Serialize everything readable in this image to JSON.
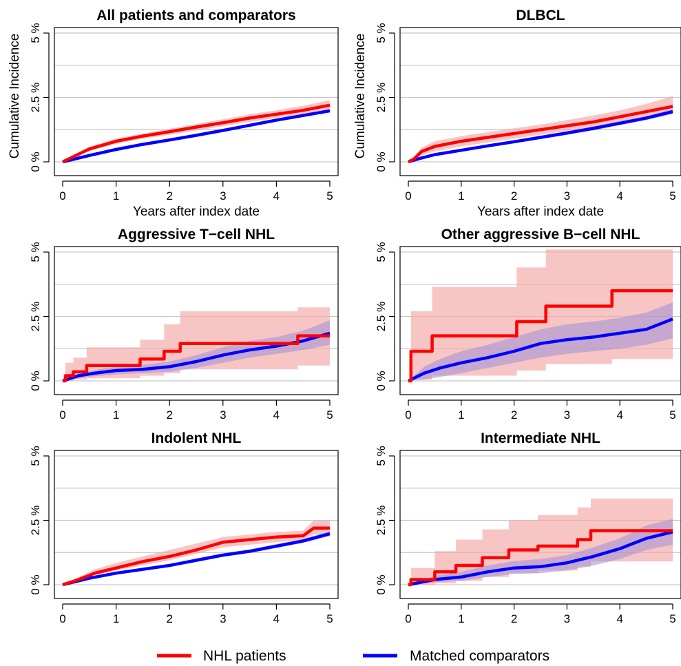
{
  "colors": {
    "nhl": "#ff0000",
    "nhl_band": "#f4a6a6",
    "comparator": "#0000ff",
    "comparator_band": "#9d8fd6",
    "grid": "#c8c8c8"
  },
  "legend": [
    {
      "label": "NHL patients",
      "color": "#ff0000"
    },
    {
      "label": "Matched comparators",
      "color": "#0000ff"
    }
  ],
  "chart_data": [
    {
      "type": "line",
      "title": "All patients and comparators",
      "xlabel": "Years after index date",
      "ylabel": "Cumulative Incidence",
      "xlim": [
        0,
        5
      ],
      "ylim": [
        0,
        5
      ],
      "xticks": [
        "0",
        "1",
        "2",
        "3",
        "4",
        "5"
      ],
      "yticks": [
        "0 %",
        "2.5 %",
        "5 %"
      ],
      "grid": true,
      "series": [
        {
          "name": "NHL patients",
          "step": false,
          "x": [
            0,
            0.5,
            1,
            1.5,
            2,
            2.5,
            3,
            3.5,
            4,
            4.5,
            5
          ],
          "y": [
            0,
            0.5,
            0.8,
            1.0,
            1.17,
            1.35,
            1.52,
            1.7,
            1.85,
            2.0,
            2.2
          ],
          "lower": [
            0,
            0.42,
            0.7,
            0.9,
            1.05,
            1.22,
            1.38,
            1.55,
            1.7,
            1.85,
            2.05
          ],
          "upper": [
            0,
            0.58,
            0.9,
            1.1,
            1.28,
            1.47,
            1.65,
            1.85,
            2.0,
            2.18,
            2.4
          ]
        },
        {
          "name": "Matched comparators",
          "step": false,
          "x": [
            0,
            0.5,
            1,
            1.5,
            2,
            2.5,
            3,
            3.5,
            4,
            4.5,
            5
          ],
          "y": [
            0,
            0.25,
            0.48,
            0.68,
            0.85,
            1.03,
            1.22,
            1.42,
            1.62,
            1.8,
            1.98
          ],
          "lower": [
            0,
            0.22,
            0.44,
            0.64,
            0.8,
            0.98,
            1.17,
            1.37,
            1.56,
            1.74,
            1.92
          ],
          "upper": [
            0,
            0.28,
            0.52,
            0.72,
            0.9,
            1.08,
            1.27,
            1.47,
            1.68,
            1.86,
            2.04
          ]
        }
      ]
    },
    {
      "type": "line",
      "title": "DLBCL",
      "xlabel": "Years after index date",
      "ylabel": "Cumulative Incidence",
      "xlim": [
        0,
        5
      ],
      "ylim": [
        0,
        5
      ],
      "xticks": [
        "0",
        "1",
        "2",
        "3",
        "4",
        "5"
      ],
      "yticks": [
        "0 %",
        "2.5 %",
        "5 %"
      ],
      "grid": true,
      "series": [
        {
          "name": "NHL patients",
          "step": false,
          "x": [
            0,
            0.1,
            0.25,
            0.5,
            1,
            1.5,
            2,
            2.5,
            3,
            3.5,
            4,
            4.5,
            5
          ],
          "y": [
            0,
            0.1,
            0.4,
            0.6,
            0.8,
            0.95,
            1.1,
            1.25,
            1.4,
            1.55,
            1.75,
            1.95,
            2.15
          ],
          "lower": [
            0,
            0.05,
            0.25,
            0.4,
            0.6,
            0.75,
            0.9,
            1.05,
            1.2,
            1.35,
            1.55,
            1.75,
            1.9
          ],
          "upper": [
            0,
            0.15,
            0.55,
            0.8,
            1.0,
            1.15,
            1.3,
            1.45,
            1.62,
            1.8,
            2.0,
            2.25,
            2.55
          ]
        },
        {
          "name": "Matched comparators",
          "step": false,
          "x": [
            0,
            0.25,
            0.5,
            1,
            1.5,
            2,
            2.5,
            3,
            3.5,
            4,
            4.5,
            5
          ],
          "y": [
            0,
            0.15,
            0.28,
            0.45,
            0.62,
            0.78,
            0.95,
            1.12,
            1.3,
            1.5,
            1.7,
            1.95
          ],
          "lower": [
            0,
            0.12,
            0.24,
            0.4,
            0.56,
            0.72,
            0.88,
            1.05,
            1.22,
            1.42,
            1.62,
            1.85
          ],
          "upper": [
            0,
            0.18,
            0.32,
            0.5,
            0.68,
            0.84,
            1.02,
            1.19,
            1.38,
            1.58,
            1.78,
            2.05
          ]
        }
      ]
    },
    {
      "type": "line",
      "title": "Aggressive T−cell NHL",
      "xlabel": "",
      "ylabel": "",
      "xlim": [
        0,
        5
      ],
      "ylim": [
        0,
        5
      ],
      "xticks": [
        "0",
        "1",
        "2",
        "3",
        "4",
        "5"
      ],
      "yticks": [
        "0 %",
        "2.5 %",
        "5 %"
      ],
      "grid": true,
      "series": [
        {
          "name": "NHL patients",
          "step": true,
          "x": [
            0,
            0.05,
            0.2,
            0.45,
            1.45,
            1.9,
            2.2,
            4.4,
            5
          ],
          "y": [
            0,
            0.2,
            0.35,
            0.6,
            0.85,
            1.15,
            1.45,
            1.75,
            1.75
          ],
          "lower": [
            0,
            0,
            0.05,
            0.1,
            0.2,
            0.3,
            0.45,
            0.6,
            0.6
          ],
          "upper": [
            0,
            0.7,
            0.9,
            1.3,
            1.6,
            2.2,
            2.7,
            2.85,
            2.85
          ]
        },
        {
          "name": "Matched comparators",
          "step": false,
          "x": [
            0,
            0.3,
            0.6,
            1,
            1.5,
            2,
            2.5,
            3,
            3.5,
            4,
            4.5,
            5
          ],
          "y": [
            0,
            0.2,
            0.3,
            0.4,
            0.45,
            0.55,
            0.75,
            1.0,
            1.2,
            1.35,
            1.55,
            1.85
          ],
          "lower": [
            0,
            0.1,
            0.18,
            0.25,
            0.3,
            0.35,
            0.5,
            0.7,
            0.9,
            1.05,
            1.2,
            1.4
          ],
          "upper": [
            0,
            0.3,
            0.42,
            0.55,
            0.62,
            0.75,
            1.0,
            1.3,
            1.55,
            1.7,
            1.95,
            2.35
          ]
        }
      ]
    },
    {
      "type": "line",
      "title": "Other aggressive B−cell NHL",
      "xlabel": "",
      "ylabel": "",
      "xlim": [
        0,
        5
      ],
      "ylim": [
        0,
        5
      ],
      "xticks": [
        "0",
        "1",
        "2",
        "3",
        "4",
        "5"
      ],
      "yticks": [
        "0 %",
        "2.5 %",
        "5 %"
      ],
      "grid": true,
      "series": [
        {
          "name": "NHL patients",
          "step": true,
          "x": [
            0,
            0.05,
            0.45,
            2.05,
            2.6,
            3.85,
            5
          ],
          "y": [
            0,
            1.15,
            1.75,
            2.3,
            2.9,
            3.5,
            3.5
          ],
          "lower": [
            0,
            0.05,
            0.2,
            0.4,
            0.65,
            0.85,
            0.85
          ],
          "upper": [
            0,
            2.7,
            3.65,
            4.4,
            5.1,
            5.1,
            5.1
          ]
        },
        {
          "name": "Matched comparators",
          "step": false,
          "x": [
            0,
            0.3,
            0.6,
            1,
            1.5,
            2,
            2.5,
            3,
            3.5,
            4,
            4.5,
            5
          ],
          "y": [
            0,
            0.3,
            0.5,
            0.7,
            0.9,
            1.15,
            1.45,
            1.6,
            1.7,
            1.85,
            2.0,
            2.4
          ],
          "lower": [
            0,
            0.05,
            0.15,
            0.3,
            0.5,
            0.7,
            0.9,
            1.05,
            1.15,
            1.25,
            1.4,
            1.65
          ],
          "upper": [
            0,
            0.55,
            0.85,
            1.15,
            1.4,
            1.7,
            2.0,
            2.2,
            2.3,
            2.45,
            2.65,
            3.05
          ]
        }
      ]
    },
    {
      "type": "line",
      "title": "Indolent NHL",
      "xlabel": "",
      "ylabel": "",
      "xlim": [
        0,
        5
      ],
      "ylim": [
        0,
        5
      ],
      "xticks": [
        "0",
        "1",
        "2",
        "3",
        "4",
        "5"
      ],
      "yticks": [
        "0 %",
        "2.5 %",
        "5 %"
      ],
      "grid": true,
      "series": [
        {
          "name": "NHL patients",
          "step": false,
          "x": [
            0,
            0.3,
            0.6,
            1,
            1.5,
            2,
            2.5,
            3,
            3.5,
            4,
            4.5,
            4.7,
            5
          ],
          "y": [
            0,
            0.2,
            0.45,
            0.65,
            0.9,
            1.1,
            1.35,
            1.65,
            1.75,
            1.85,
            1.9,
            2.2,
            2.2
          ],
          "lower": [
            0,
            0.15,
            0.35,
            0.55,
            0.75,
            0.95,
            1.2,
            1.45,
            1.55,
            1.65,
            1.75,
            1.95,
            1.95
          ],
          "upper": [
            0,
            0.3,
            0.6,
            0.85,
            1.1,
            1.35,
            1.6,
            1.85,
            1.95,
            2.05,
            2.1,
            2.5,
            2.5
          ]
        },
        {
          "name": "Matched comparators",
          "step": false,
          "x": [
            0,
            0.5,
            1,
            1.5,
            2,
            2.5,
            3,
            3.5,
            4,
            4.5,
            5
          ],
          "y": [
            0,
            0.25,
            0.45,
            0.6,
            0.75,
            0.95,
            1.15,
            1.3,
            1.5,
            1.7,
            1.98
          ],
          "lower": [
            0,
            0.22,
            0.4,
            0.55,
            0.7,
            0.88,
            1.08,
            1.23,
            1.42,
            1.62,
            1.88
          ],
          "upper": [
            0,
            0.28,
            0.5,
            0.65,
            0.8,
            1.02,
            1.22,
            1.37,
            1.58,
            1.78,
            2.08
          ]
        }
      ]
    },
    {
      "type": "line",
      "title": "Intermediate NHL",
      "xlabel": "",
      "ylabel": "",
      "xlim": [
        0,
        5
      ],
      "ylim": [
        0,
        5
      ],
      "xticks": [
        "0",
        "1",
        "2",
        "3",
        "4",
        "5"
      ],
      "yticks": [
        "0 %",
        "2.5 %",
        "5 %"
      ],
      "grid": true,
      "series": [
        {
          "name": "NHL patients",
          "step": true,
          "x": [
            0,
            0.05,
            0.5,
            0.9,
            1.4,
            1.9,
            2.45,
            3.2,
            3.45,
            5
          ],
          "y": [
            0,
            0.2,
            0.5,
            0.75,
            1.05,
            1.35,
            1.5,
            1.75,
            2.1,
            2.1
          ],
          "lower": [
            0,
            0,
            0.05,
            0.15,
            0.3,
            0.45,
            0.55,
            0.7,
            0.9,
            0.9
          ],
          "upper": [
            0,
            0.65,
            1.3,
            1.75,
            2.15,
            2.5,
            2.7,
            3.0,
            3.35,
            3.35
          ]
        },
        {
          "name": "Matched comparators",
          "step": false,
          "x": [
            0,
            0.5,
            1,
            1.5,
            2,
            2.5,
            3,
            3.5,
            4,
            4.5,
            5
          ],
          "y": [
            0,
            0.2,
            0.3,
            0.5,
            0.65,
            0.7,
            0.85,
            1.1,
            1.4,
            1.8,
            2.05
          ],
          "lower": [
            0,
            0.1,
            0.15,
            0.3,
            0.42,
            0.45,
            0.55,
            0.75,
            1.0,
            1.35,
            1.55
          ],
          "upper": [
            0,
            0.35,
            0.5,
            0.75,
            0.92,
            1.0,
            1.15,
            1.45,
            1.8,
            2.3,
            2.55
          ]
        }
      ]
    }
  ]
}
